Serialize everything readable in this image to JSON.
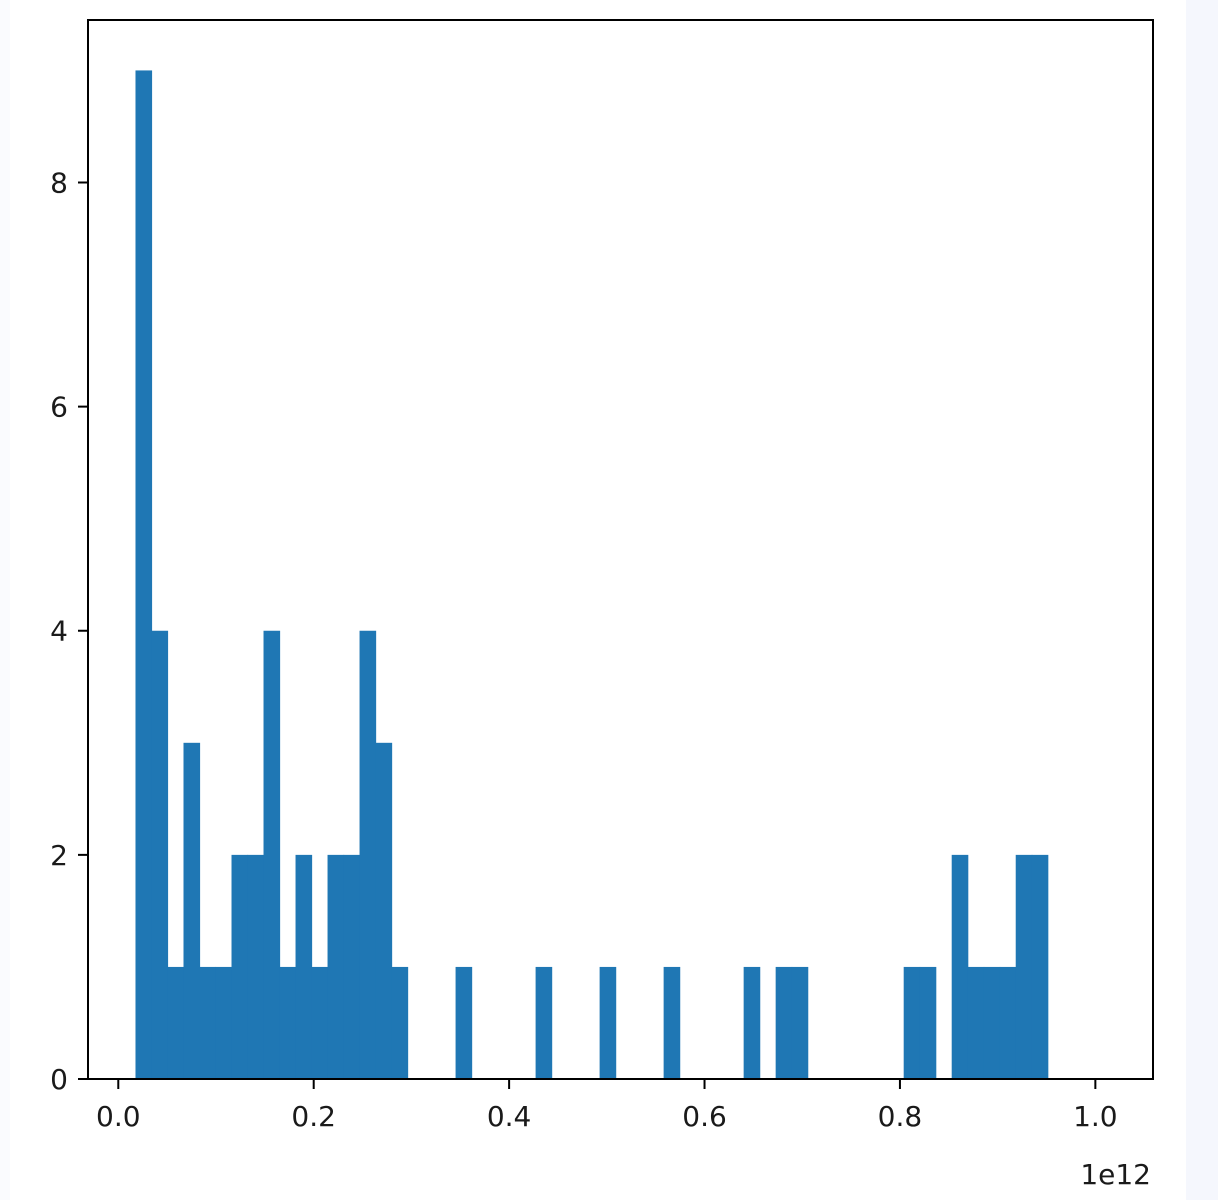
{
  "chart_data": {
    "type": "histogram",
    "title": "",
    "xlabel": "",
    "ylabel": "",
    "x_offset_label": "1e12",
    "xlim": [
      -0.031,
      1.059
    ],
    "ylim": [
      0,
      9.45
    ],
    "xticks": [
      0.0,
      0.2,
      0.4,
      0.6,
      0.8,
      1.0
    ],
    "xtick_labels": [
      "0.0",
      "0.2",
      "0.4",
      "0.6",
      "0.8",
      "1.0"
    ],
    "yticks": [
      0,
      2,
      4,
      6,
      8
    ],
    "ytick_labels": [
      "0",
      "2",
      "4",
      "6",
      "8"
    ],
    "bin_width": 0.01638,
    "x_start": 0.0176,
    "counts": [
      9,
      4,
      1,
      3,
      1,
      1,
      2,
      2,
      4,
      1,
      2,
      1,
      2,
      2,
      4,
      3,
      1,
      0,
      0,
      0,
      1,
      0,
      0,
      0,
      0,
      1,
      0,
      0,
      0,
      1,
      0,
      0,
      0,
      1,
      0,
      0,
      0,
      0,
      1,
      0,
      1,
      1,
      0,
      0,
      0,
      0,
      0,
      0,
      1,
      1,
      0,
      2,
      1,
      1,
      1,
      2,
      2
    ],
    "bar_color": "#1f77b4",
    "grid": false,
    "legend": "none"
  }
}
